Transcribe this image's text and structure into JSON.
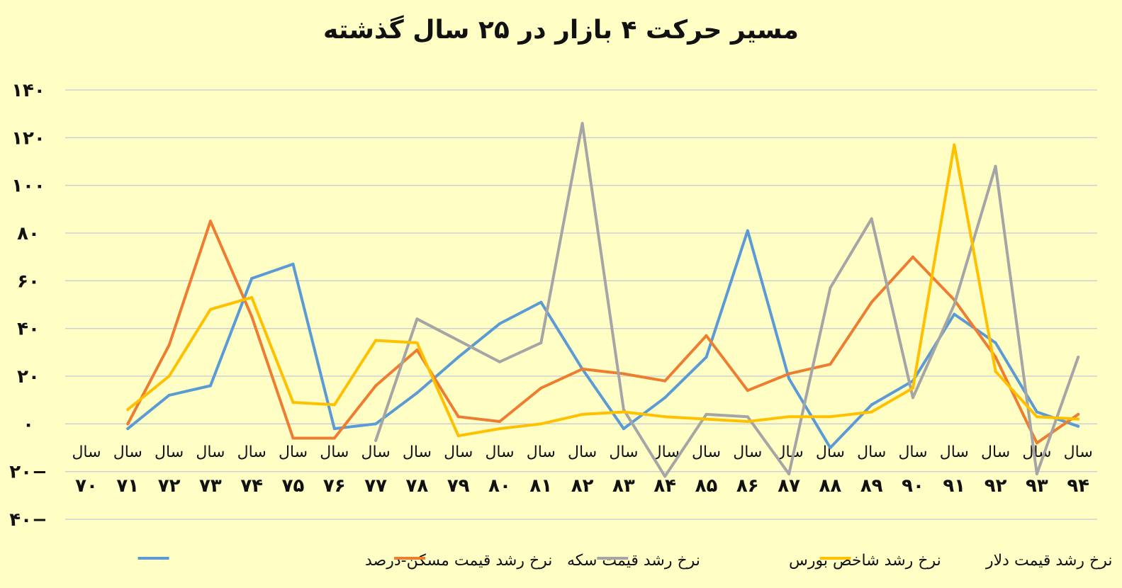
{
  "chart_data": {
    "type": "line",
    "title": "مسیر حرکت ۴ بازار در ۲۵ سال گذشته",
    "xlabel": "",
    "ylabel": "",
    "ylim": [
      -40,
      140
    ],
    "yticks": [
      {
        "value": 140,
        "label": "۱۴۰"
      },
      {
        "value": 120,
        "label": "۱۲۰"
      },
      {
        "value": 100,
        "label": "۱۰۰"
      },
      {
        "value": 80,
        "label": "۸۰"
      },
      {
        "value": 60,
        "label": "۶۰"
      },
      {
        "value": 40,
        "label": "۴۰"
      },
      {
        "value": 20,
        "label": "۲۰"
      },
      {
        "value": 0,
        "label": "۰"
      },
      {
        "value": -20,
        "label": "۲۰−"
      },
      {
        "value": -40,
        "label": "۴۰−"
      }
    ],
    "grid": true,
    "legend_position": "bottom",
    "category_prefix": "سال",
    "categories": [
      "۷۰",
      "۷۱",
      "۷۲",
      "۷۳",
      "۷۴",
      "۷۵",
      "۷۶",
      "۷۷",
      "۷۸",
      "۷۹",
      "۸۰",
      "۸۱",
      "۸۲",
      "۸۳",
      "۸۴",
      "۸۵",
      "۸۶",
      "۸۷",
      "۸۸",
      "۸۹",
      "۹۰",
      "۹۱",
      "۹۲",
      "۹۳",
      "۹۴"
    ],
    "series": [
      {
        "name": "نرخ رشد قیمت مسکن-درصد",
        "color": "#5b9bd5",
        "values": [
          null,
          -2,
          12,
          16,
          61,
          67,
          -2,
          0,
          13,
          28,
          42,
          51,
          23,
          -2,
          11,
          28,
          81,
          19,
          -10,
          8,
          18,
          46,
          34,
          5,
          -1
        ]
      },
      {
        "name": "نرخ رشد قیمت سکه",
        "color": "#ed7d31",
        "values": [
          null,
          0,
          33,
          85,
          45,
          -6,
          -6,
          16,
          31,
          3,
          1,
          15,
          23,
          21,
          18,
          37,
          14,
          21,
          25,
          51,
          70,
          52,
          28,
          -8,
          4
        ]
      },
      {
        "name": "نرخ رشد شاخص بورس",
        "color": "#a5a5a5",
        "values": [
          null,
          null,
          null,
          null,
          null,
          null,
          null,
          -7,
          44,
          35,
          26,
          34,
          126,
          6,
          -22,
          4,
          3,
          -21,
          57,
          86,
          11,
          50,
          108,
          -21,
          28
        ]
      },
      {
        "name": "نرخ رشد قیمت دلار",
        "color": "#ffc000",
        "values": [
          null,
          6,
          20,
          48,
          53,
          9,
          8,
          35,
          34,
          -5,
          -2,
          0,
          4,
          5,
          3,
          2,
          1,
          3,
          3,
          5,
          15,
          117,
          22,
          3,
          2
        ]
      }
    ]
  }
}
